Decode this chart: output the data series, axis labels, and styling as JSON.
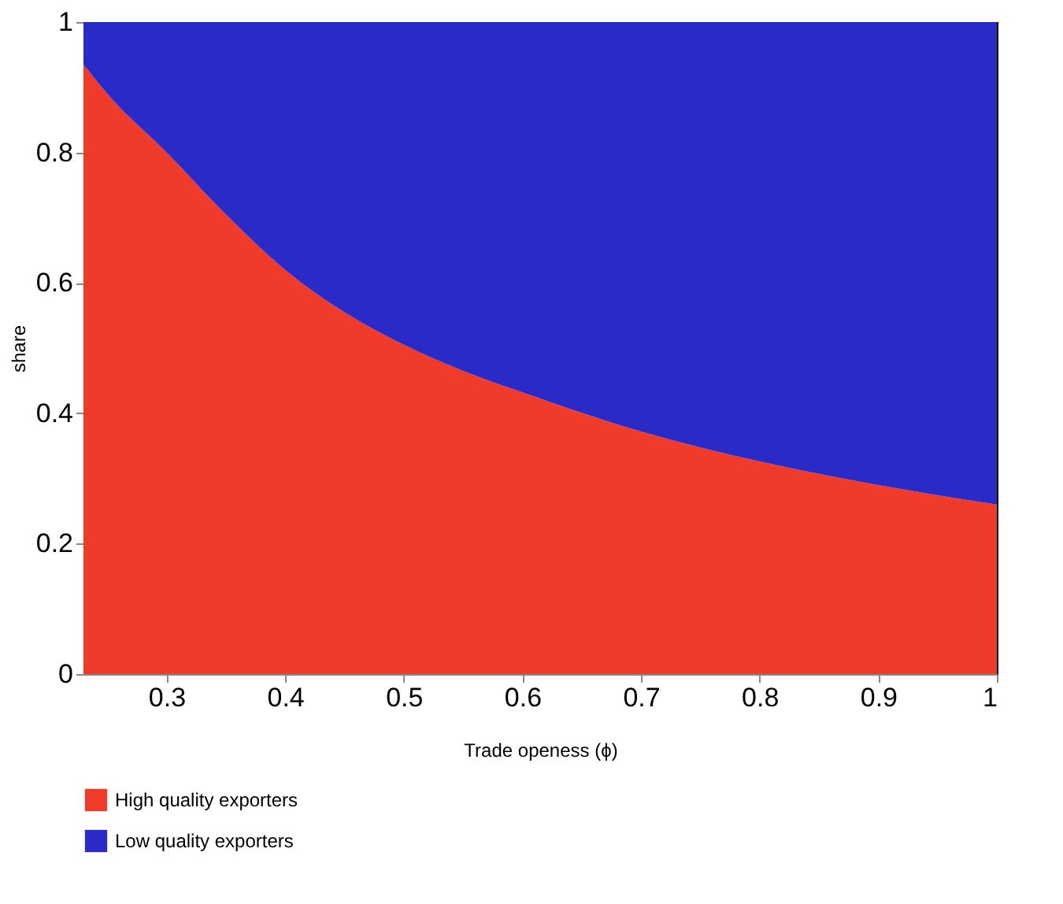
{
  "chart_data": {
    "type": "area",
    "stacked": true,
    "xlabel": "Trade openess (ϕ)",
    "ylabel": "share",
    "x": [
      0.23,
      0.25,
      0.3,
      0.35,
      0.4,
      0.45,
      0.5,
      0.55,
      0.6,
      0.7,
      0.8,
      0.9,
      1.0
    ],
    "series": [
      {
        "name": "High quality exporters",
        "color": "#f03a2a",
        "values": [
          0.935,
          0.89,
          0.8,
          0.705,
          0.62,
          0.555,
          0.505,
          0.465,
          0.432,
          0.372,
          0.326,
          0.29,
          0.26
        ]
      },
      {
        "name": "Low quality exporters",
        "color": "#2a2ac8",
        "values": [
          0.065,
          0.11,
          0.2,
          0.295,
          0.38,
          0.445,
          0.495,
          0.535,
          0.568,
          0.628,
          0.674,
          0.71,
          0.74
        ]
      }
    ],
    "xlim": [
      0.23,
      1
    ],
    "ylim": [
      0,
      1
    ],
    "xticks": [
      0.3,
      0.4,
      0.5,
      0.6,
      0.7,
      0.8,
      0.9,
      1
    ],
    "yticks": [
      0,
      0.2,
      0.4,
      0.6,
      0.8,
      1
    ],
    "grid": false,
    "legend": "bottom left"
  }
}
